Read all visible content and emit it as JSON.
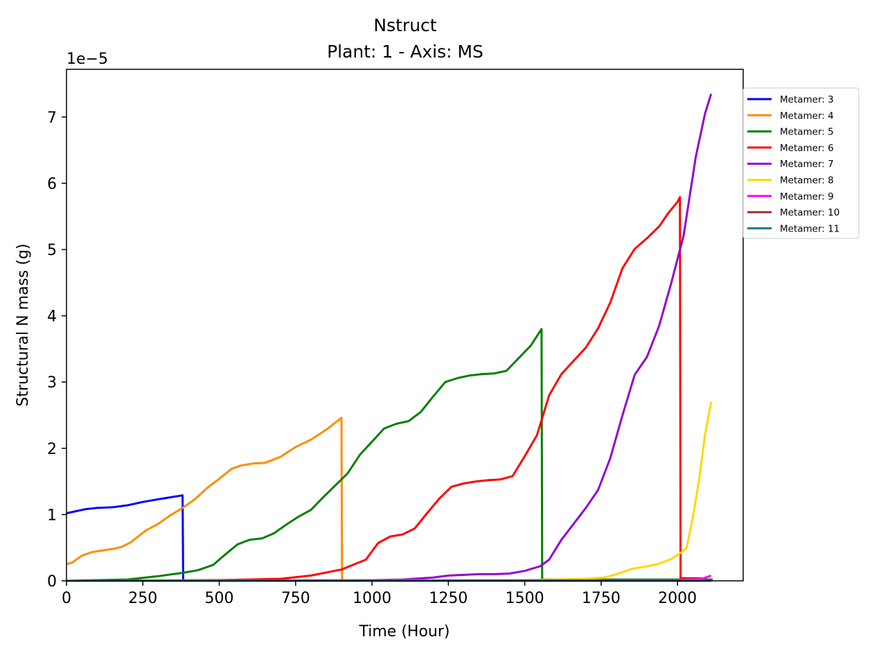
{
  "chart_data": {
    "type": "line",
    "title": "Nstruct",
    "subtitle": "Plant: 1 - Axis: MS",
    "xlabel": "Time (Hour)",
    "ylabel": "Structural N mass (g)",
    "y_offset_label": "1e−5",
    "xlim": [
      0,
      2215
    ],
    "ylim": [
      0,
      7.72
    ],
    "y_scale_note": "values in units of 1e-5 g",
    "xticks": [
      0,
      250,
      500,
      750,
      1000,
      1250,
      1500,
      1750,
      2000
    ],
    "xtick_labels": [
      "0",
      "250",
      "500",
      "750",
      "1000",
      "1250",
      "1500",
      "1750",
      "2000"
    ],
    "yticks": [
      0,
      1,
      2,
      3,
      4,
      5,
      6,
      7
    ],
    "ytick_labels": [
      "0",
      "1",
      "2",
      "3",
      "4",
      "5",
      "6",
      "7"
    ],
    "grid": false,
    "legend_position": "outside-right",
    "series": [
      {
        "name": "Metamer: 3",
        "color": "#0000ff",
        "x": [
          0,
          30,
          60,
          100,
          150,
          200,
          250,
          300,
          340,
          380,
          382,
          384
        ],
        "y": [
          1.02,
          1.05,
          1.08,
          1.1,
          1.11,
          1.14,
          1.19,
          1.23,
          1.26,
          1.29,
          0.0,
          0.0
        ]
      },
      {
        "name": "Metamer: 4",
        "color": "#ff8c00",
        "x": [
          0,
          20,
          50,
          80,
          120,
          150,
          180,
          210,
          260,
          300,
          340,
          380,
          420,
          460,
          500,
          540,
          570,
          610,
          650,
          700,
          750,
          800,
          850,
          900,
          902,
          904
        ],
        "y": [
          0.25,
          0.28,
          0.38,
          0.43,
          0.46,
          0.48,
          0.51,
          0.58,
          0.76,
          0.86,
          0.99,
          1.1,
          1.23,
          1.4,
          1.54,
          1.69,
          1.74,
          1.77,
          1.78,
          1.87,
          2.02,
          2.13,
          2.28,
          2.46,
          0.0,
          0.0
        ]
      },
      {
        "name": "Metamer: 5",
        "color": "#008000",
        "x": [
          0,
          100,
          200,
          300,
          380,
          430,
          480,
          520,
          560,
          600,
          640,
          680,
          720,
          760,
          800,
          840,
          880,
          920,
          960,
          1000,
          1040,
          1080,
          1120,
          1160,
          1200,
          1240,
          1280,
          1320,
          1360,
          1400,
          1440,
          1480,
          1520,
          1555,
          1557,
          1560,
          2115
        ],
        "y": [
          0.0,
          0.01,
          0.02,
          0.07,
          0.12,
          0.16,
          0.24,
          0.4,
          0.55,
          0.62,
          0.64,
          0.72,
          0.85,
          0.97,
          1.07,
          1.26,
          1.44,
          1.62,
          1.9,
          2.1,
          2.3,
          2.37,
          2.41,
          2.55,
          2.78,
          3.0,
          3.06,
          3.1,
          3.12,
          3.13,
          3.17,
          3.36,
          3.55,
          3.8,
          0.02,
          0.02,
          0.02
        ]
      },
      {
        "name": "Metamer: 6",
        "color": "#ff0000",
        "x": [
          0,
          500,
          600,
          700,
          800,
          900,
          980,
          1020,
          1060,
          1100,
          1140,
          1180,
          1220,
          1260,
          1300,
          1340,
          1380,
          1420,
          1460,
          1500,
          1540,
          1580,
          1620,
          1660,
          1700,
          1740,
          1780,
          1820,
          1860,
          1900,
          1940,
          1970,
          2000,
          2008,
          2010,
          2013,
          2080
        ],
        "y": [
          0.0,
          0.01,
          0.02,
          0.03,
          0.08,
          0.17,
          0.32,
          0.57,
          0.67,
          0.7,
          0.79,
          1.02,
          1.24,
          1.42,
          1.47,
          1.5,
          1.52,
          1.53,
          1.58,
          1.88,
          2.2,
          2.8,
          3.12,
          3.32,
          3.52,
          3.81,
          4.2,
          4.72,
          5.01,
          5.17,
          5.35,
          5.55,
          5.72,
          5.79,
          0.04,
          0.04,
          0.04
        ]
      },
      {
        "name": "Metamer: 7",
        "color": "#9400d3",
        "x": [
          0,
          1000,
          1100,
          1200,
          1250,
          1300,
          1350,
          1400,
          1450,
          1500,
          1550,
          1580,
          1620,
          1660,
          1700,
          1740,
          1780,
          1820,
          1860,
          1900,
          1940,
          1980,
          2020,
          2060,
          2090,
          2110
        ],
        "y": [
          0.0,
          0.01,
          0.02,
          0.05,
          0.08,
          0.09,
          0.1,
          0.1,
          0.11,
          0.15,
          0.22,
          0.32,
          0.62,
          0.86,
          1.1,
          1.37,
          1.85,
          2.5,
          3.11,
          3.38,
          3.85,
          4.5,
          5.21,
          6.4,
          7.05,
          7.35
        ]
      },
      {
        "name": "Metamer: 8",
        "color": "#ffd700",
        "x": [
          0,
          1500,
          1600,
          1700,
          1760,
          1800,
          1850,
          1900,
          1940,
          1980,
          2010,
          2030,
          2050,
          2070,
          2090,
          2110
        ],
        "y": [
          0.0,
          0.01,
          0.02,
          0.03,
          0.05,
          0.1,
          0.18,
          0.22,
          0.26,
          0.33,
          0.42,
          0.5,
          0.95,
          1.5,
          2.2,
          2.7
        ]
      },
      {
        "name": "Metamer: 9",
        "color": "#ff00ff",
        "x": [
          0,
          2000,
          2080,
          2110
        ],
        "y": [
          0.0,
          0.01,
          0.03,
          0.08
        ]
      },
      {
        "name": "Metamer: 10",
        "color": "#a52a2a",
        "x": [
          0,
          2110
        ],
        "y": [
          0.0,
          0.0
        ]
      },
      {
        "name": "Metamer: 11",
        "color": "#008080",
        "x": [
          0,
          2110
        ],
        "y": [
          0.0,
          0.0
        ]
      }
    ]
  }
}
